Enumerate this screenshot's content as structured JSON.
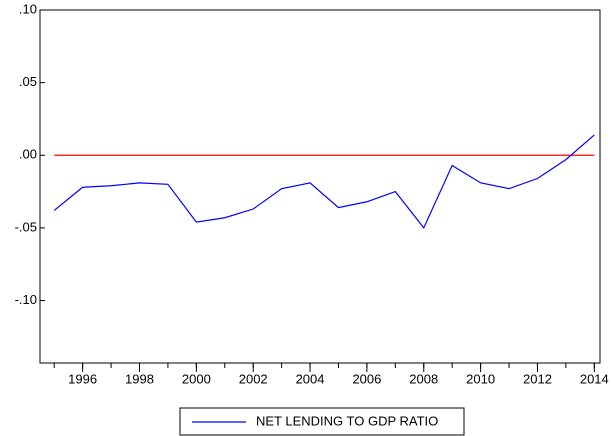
{
  "chart_data": {
    "type": "line",
    "x": [
      1995,
      1996,
      1997,
      1998,
      1999,
      2000,
      2001,
      2002,
      2003,
      2004,
      2005,
      2006,
      2007,
      2008,
      2009,
      2010,
      2011,
      2012,
      2013,
      2014
    ],
    "series": [
      {
        "name": "NET LENDING TO GDP RATIO",
        "color": "#0000ff",
        "values": [
          -0.038,
          -0.022,
          -0.021,
          -0.019,
          -0.02,
          -0.046,
          -0.043,
          -0.037,
          -0.023,
          -0.019,
          -0.036,
          -0.032,
          -0.025,
          -0.05,
          -0.007,
          -0.019,
          -0.023,
          -0.016,
          -0.003,
          0.014
        ]
      }
    ],
    "reference_line": {
      "value": 0,
      "color": "#ff0000"
    },
    "xlim": [
      1994.5,
      2014.2
    ],
    "xticks": [
      1996,
      1998,
      2000,
      2002,
      2004,
      2006,
      2008,
      2010,
      2012,
      2014
    ],
    "ylim": [
      -0.143,
      0.1
    ],
    "yticks": [
      {
        "value": 0.1,
        "label": ".10"
      },
      {
        "value": 0.05,
        "label": ".05"
      },
      {
        "value": 0,
        "label": ".00"
      },
      {
        "value": -0.05,
        "label": "-.05"
      },
      {
        "value": -0.1,
        "label": "-.10"
      }
    ],
    "legend": "bottom"
  }
}
